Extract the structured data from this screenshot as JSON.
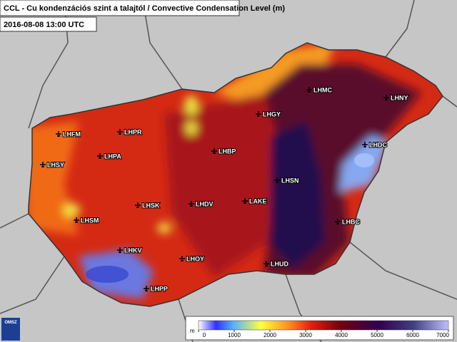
{
  "header": {
    "title": "CCL - Cu kondenzációs szint a talajtól / Convective Condensation Level (m)",
    "datetime": "2016-08-08 13:00 UTC"
  },
  "stations": [
    "LHFM",
    "LHPR",
    "LHPA",
    "LHSY",
    "LHSM",
    "LHSK",
    "LHKV",
    "LHPP",
    "LHOY",
    "LHDV",
    "LHBP",
    "LHGY",
    "LHMC",
    "LHNY",
    "LHDC",
    "LHSN",
    "LAKE",
    "LHBC",
    "LHUD"
  ],
  "colorbar": {
    "unit": "m",
    "ticks": [
      0,
      1000,
      2000,
      3000,
      4000,
      5000,
      6000,
      7000
    ]
  },
  "logo": "OMSZ"
}
